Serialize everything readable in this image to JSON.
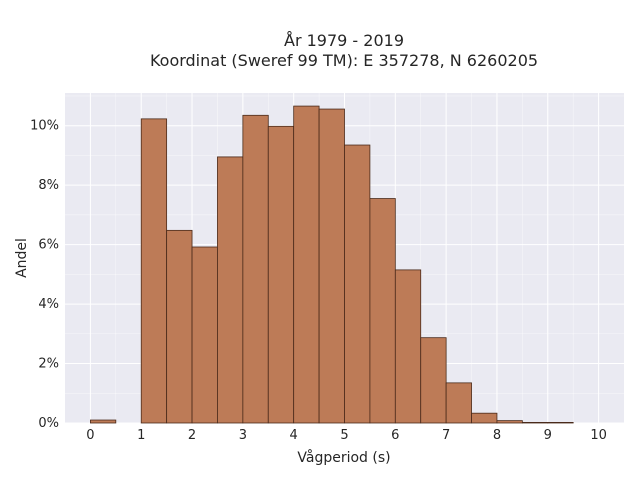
{
  "chart_data": {
    "type": "bar",
    "title": "År 1979 - 2019",
    "subtitle": "Koordinat (Sweref 99 TM): E 357278, N 6260205",
    "xlabel": "Vågperiod (s)",
    "ylabel": "Andel",
    "x_ticks": [
      "0",
      "1",
      "2",
      "3",
      "4",
      "5",
      "6",
      "7",
      "8",
      "9",
      "10"
    ],
    "y_ticks": [
      "0%",
      "2%",
      "4%",
      "6%",
      "8%",
      "10%"
    ],
    "xlim": [
      -0.5,
      10.5
    ],
    "ylim": [
      0,
      0.111
    ],
    "bin_width": 0.5,
    "bins": [
      {
        "x0": 0.0,
        "value": 0.001
      },
      {
        "x0": 0.5,
        "value": 0.0
      },
      {
        "x0": 1.0,
        "value": 0.1023
      },
      {
        "x0": 1.5,
        "value": 0.0648
      },
      {
        "x0": 2.0,
        "value": 0.0592
      },
      {
        "x0": 2.5,
        "value": 0.0895
      },
      {
        "x0": 3.0,
        "value": 0.1035
      },
      {
        "x0": 3.5,
        "value": 0.0998
      },
      {
        "x0": 4.0,
        "value": 0.1066
      },
      {
        "x0": 4.5,
        "value": 0.1056
      },
      {
        "x0": 5.0,
        "value": 0.0935
      },
      {
        "x0": 5.5,
        "value": 0.0755
      },
      {
        "x0": 6.0,
        "value": 0.0515
      },
      {
        "x0": 6.5,
        "value": 0.0287
      },
      {
        "x0": 7.0,
        "value": 0.0135
      },
      {
        "x0": 7.5,
        "value": 0.0033
      },
      {
        "x0": 8.0,
        "value": 0.0008
      },
      {
        "x0": 8.5,
        "value": 0.0002
      },
      {
        "x0": 9.0,
        "value": 0.0001
      }
    ],
    "grid": true,
    "colors": {
      "bar_fill": "#bd7b57",
      "bar_edge": "#4a2a1a",
      "plot_background": "#eaeaf2",
      "grid": "#ffffff"
    }
  }
}
